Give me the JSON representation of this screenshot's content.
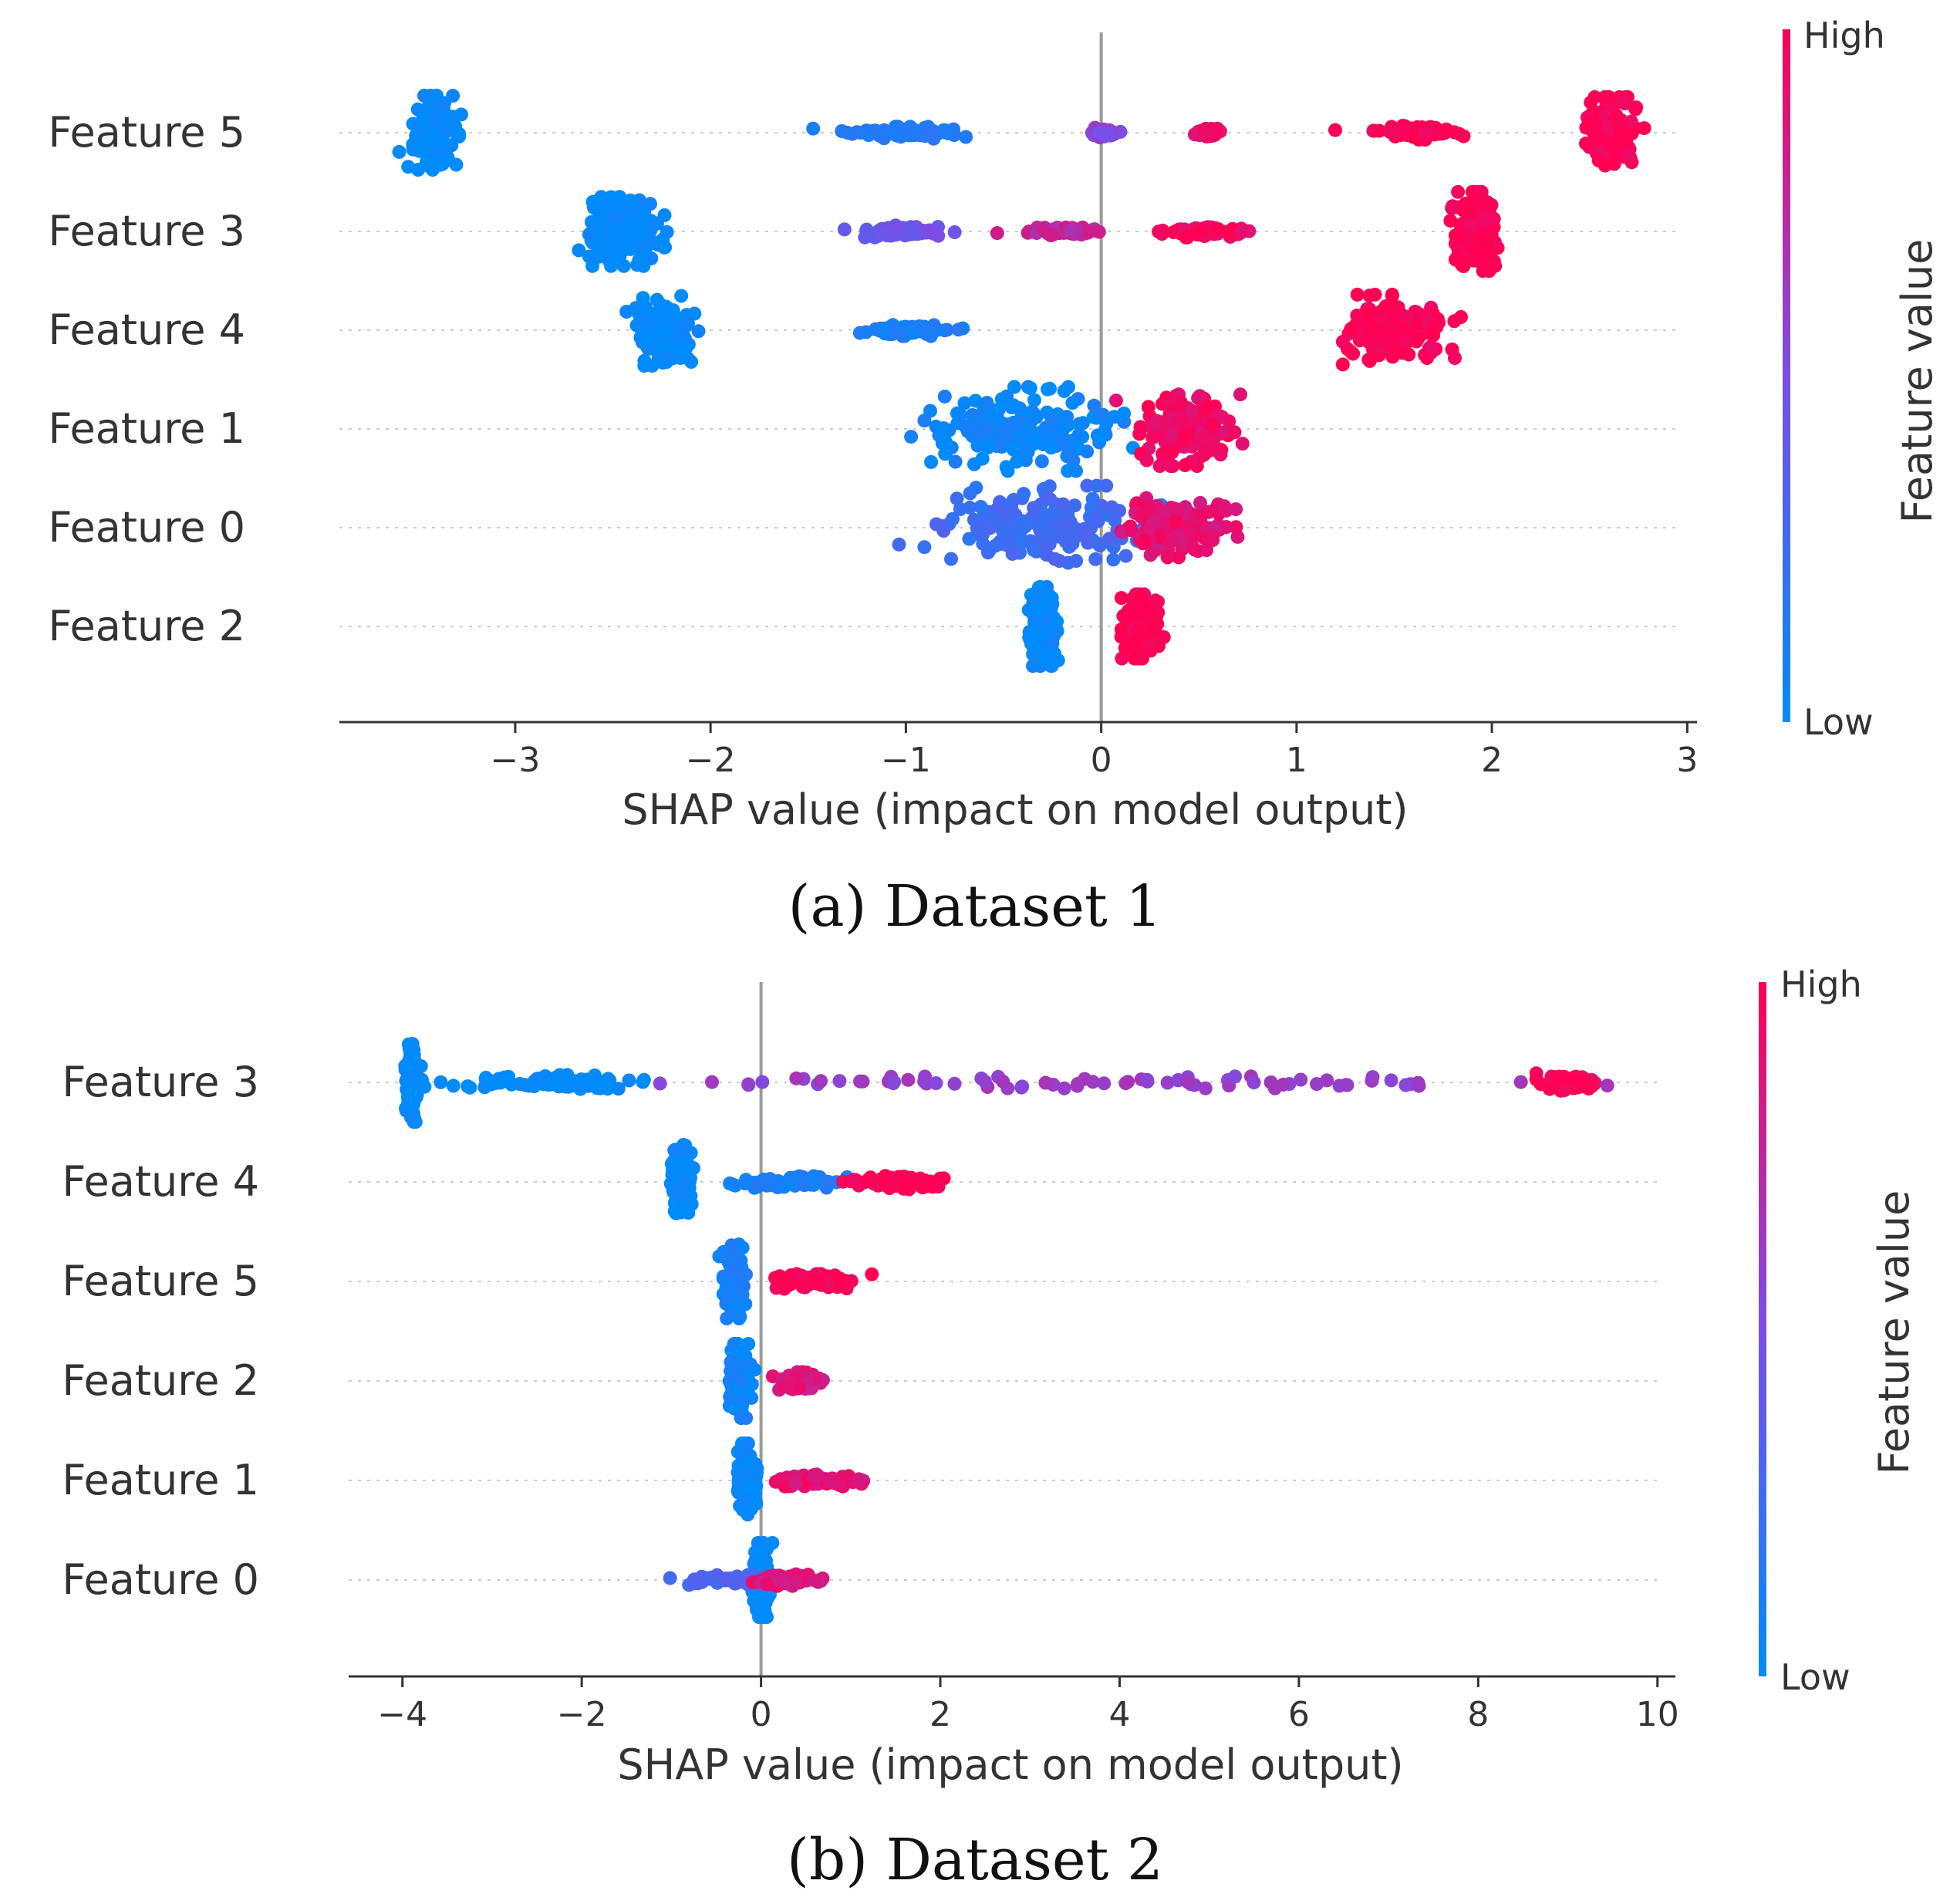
{
  "colors": {
    "low": "#008bfb",
    "high": "#ff0052",
    "axis": "#333333",
    "zero_line": "#999999",
    "grid": "#cccccc"
  },
  "chart_data": [
    {
      "type": "scatter",
      "subtype": "shap-beeswarm",
      "caption": "(a) Dataset 1",
      "xlabel": "SHAP value (impact on model output)",
      "xlim": [
        -3.9,
        3.05
      ],
      "xticks": [
        -3,
        -2,
        -1,
        0,
        1,
        2,
        3
      ],
      "xtick_labels": [
        "−3",
        "−2",
        "−1",
        "0",
        "1",
        "2",
        "3"
      ],
      "colorbar": {
        "title": "Feature value",
        "high_label": "High",
        "low_label": "Low"
      },
      "features": [
        {
          "name": "Feature 5",
          "clusters": [
            {
              "center": -3.42,
              "spread": 0.1,
              "height": 0.75,
              "low_color": 0.0
            },
            {
              "center": -1.0,
              "spread": 0.28,
              "height": 0.12,
              "low_color": 0.15
            },
            {
              "center": 0.0,
              "spread": 0.06,
              "height": 0.1,
              "low_color": 0.55
            },
            {
              "center": 0.55,
              "spread": 0.05,
              "height": 0.08,
              "low_color": 0.95
            },
            {
              "center": 1.6,
              "spread": 0.2,
              "height": 0.14,
              "low_color": 1.0
            },
            {
              "center": 2.6,
              "spread": 0.13,
              "height": 0.72,
              "low_color": 1.0
            }
          ]
        },
        {
          "name": "Feature 3",
          "clusters": [
            {
              "center": -2.45,
              "spread": 0.2,
              "height": 0.7,
              "low_color": 0.0
            },
            {
              "center": -1.0,
              "spread": 0.2,
              "height": 0.12,
              "low_color": 0.45
            },
            {
              "center": -0.2,
              "spread": 0.2,
              "height": 0.08,
              "low_color": 0.75
            },
            {
              "center": 0.55,
              "spread": 0.2,
              "height": 0.12,
              "low_color": 0.95
            },
            {
              "center": 1.92,
              "spread": 0.1,
              "height": 0.8,
              "low_color": 1.0
            }
          ]
        },
        {
          "name": "Feature 4",
          "clusters": [
            {
              "center": -2.25,
              "spread": 0.12,
              "height": 0.72,
              "low_color": 0.0
            },
            {
              "center": -0.97,
              "spread": 0.2,
              "height": 0.12,
              "low_color": 0.1
            },
            {
              "center": 1.5,
              "spread": 0.25,
              "height": 0.72,
              "low_color": 1.0
            }
          ]
        },
        {
          "name": "Feature 1",
          "clusters": [
            {
              "center": -0.4,
              "spread": 0.45,
              "height": 0.85,
              "low_color": 0.05
            },
            {
              "center": 0.45,
              "spread": 0.22,
              "height": 0.75,
              "low_color": 0.95
            }
          ]
        },
        {
          "name": "Feature 0",
          "clusters": [
            {
              "center": -0.3,
              "spread": 0.5,
              "height": 0.85,
              "low_color": 0.25
            },
            {
              "center": 0.4,
              "spread": 0.25,
              "height": 0.6,
              "low_color": 0.9
            }
          ]
        },
        {
          "name": "Feature 2",
          "clusters": [
            {
              "center": -0.3,
              "spread": 0.07,
              "height": 0.8,
              "low_color": 0.0
            },
            {
              "center": 0.2,
              "spread": 0.08,
              "height": 0.65,
              "low_color": 1.0
            }
          ]
        }
      ]
    },
    {
      "type": "scatter",
      "subtype": "shap-beeswarm",
      "caption": "(b) Dataset 2",
      "xlabel": "SHAP value (impact on model output)",
      "xlim": [
        -4.6,
        10.2
      ],
      "xticks": [
        -4,
        -2,
        0,
        2,
        4,
        6,
        8,
        10
      ],
      "xtick_labels": [
        "−4",
        "−2",
        "0",
        "2",
        "4",
        "6",
        "8",
        "10"
      ],
      "colorbar": {
        "title": "Feature value",
        "high_label": "High",
        "low_label": "Low"
      },
      "features": [
        {
          "name": "Feature 3",
          "clusters": [
            {
              "center": -3.9,
              "spread": 0.05,
              "height": 0.8,
              "low_color": 0.0
            },
            {
              "center": -2.5,
              "spread": 1.2,
              "height": 0.15,
              "low_color": 0.0
            },
            {
              "center": 4.0,
              "spread": 5.0,
              "height": 0.12,
              "low_color": 0.6
            },
            {
              "center": 9.0,
              "spread": 0.3,
              "height": 0.2,
              "low_color": 1.0
            }
          ]
        },
        {
          "name": "Feature 4",
          "clusters": [
            {
              "center": -0.9,
              "spread": 0.1,
              "height": 0.75,
              "low_color": 0.0
            },
            {
              "center": 0.3,
              "spread": 0.6,
              "height": 0.12,
              "low_color": 0.1
            },
            {
              "center": 1.5,
              "spread": 0.5,
              "height": 0.15,
              "low_color": 1.0
            }
          ]
        },
        {
          "name": "Feature 5",
          "clusters": [
            {
              "center": -0.3,
              "spread": 0.1,
              "height": 0.75,
              "low_color": 0.1
            },
            {
              "center": 0.6,
              "spread": 0.45,
              "height": 0.15,
              "low_color": 1.0
            }
          ]
        },
        {
          "name": "Feature 2",
          "clusters": [
            {
              "center": -0.25,
              "spread": 0.12,
              "height": 0.75,
              "low_color": 0.05
            },
            {
              "center": 0.4,
              "spread": 0.2,
              "height": 0.18,
              "low_color": 0.85
            }
          ]
        },
        {
          "name": "Feature 1",
          "clusters": [
            {
              "center": -0.15,
              "spread": 0.1,
              "height": 0.75,
              "low_color": 0.0
            },
            {
              "center": 0.6,
              "spread": 0.45,
              "height": 0.12,
              "low_color": 0.9
            }
          ]
        },
        {
          "name": "Feature 0",
          "clusters": [
            {
              "center": 0.0,
              "spread": 0.08,
              "height": 0.75,
              "low_color": 0.0
            },
            {
              "center": -0.3,
              "spread": 0.5,
              "height": 0.1,
              "low_color": 0.3
            },
            {
              "center": 0.3,
              "spread": 0.35,
              "height": 0.12,
              "low_color": 0.85
            }
          ]
        }
      ]
    }
  ]
}
